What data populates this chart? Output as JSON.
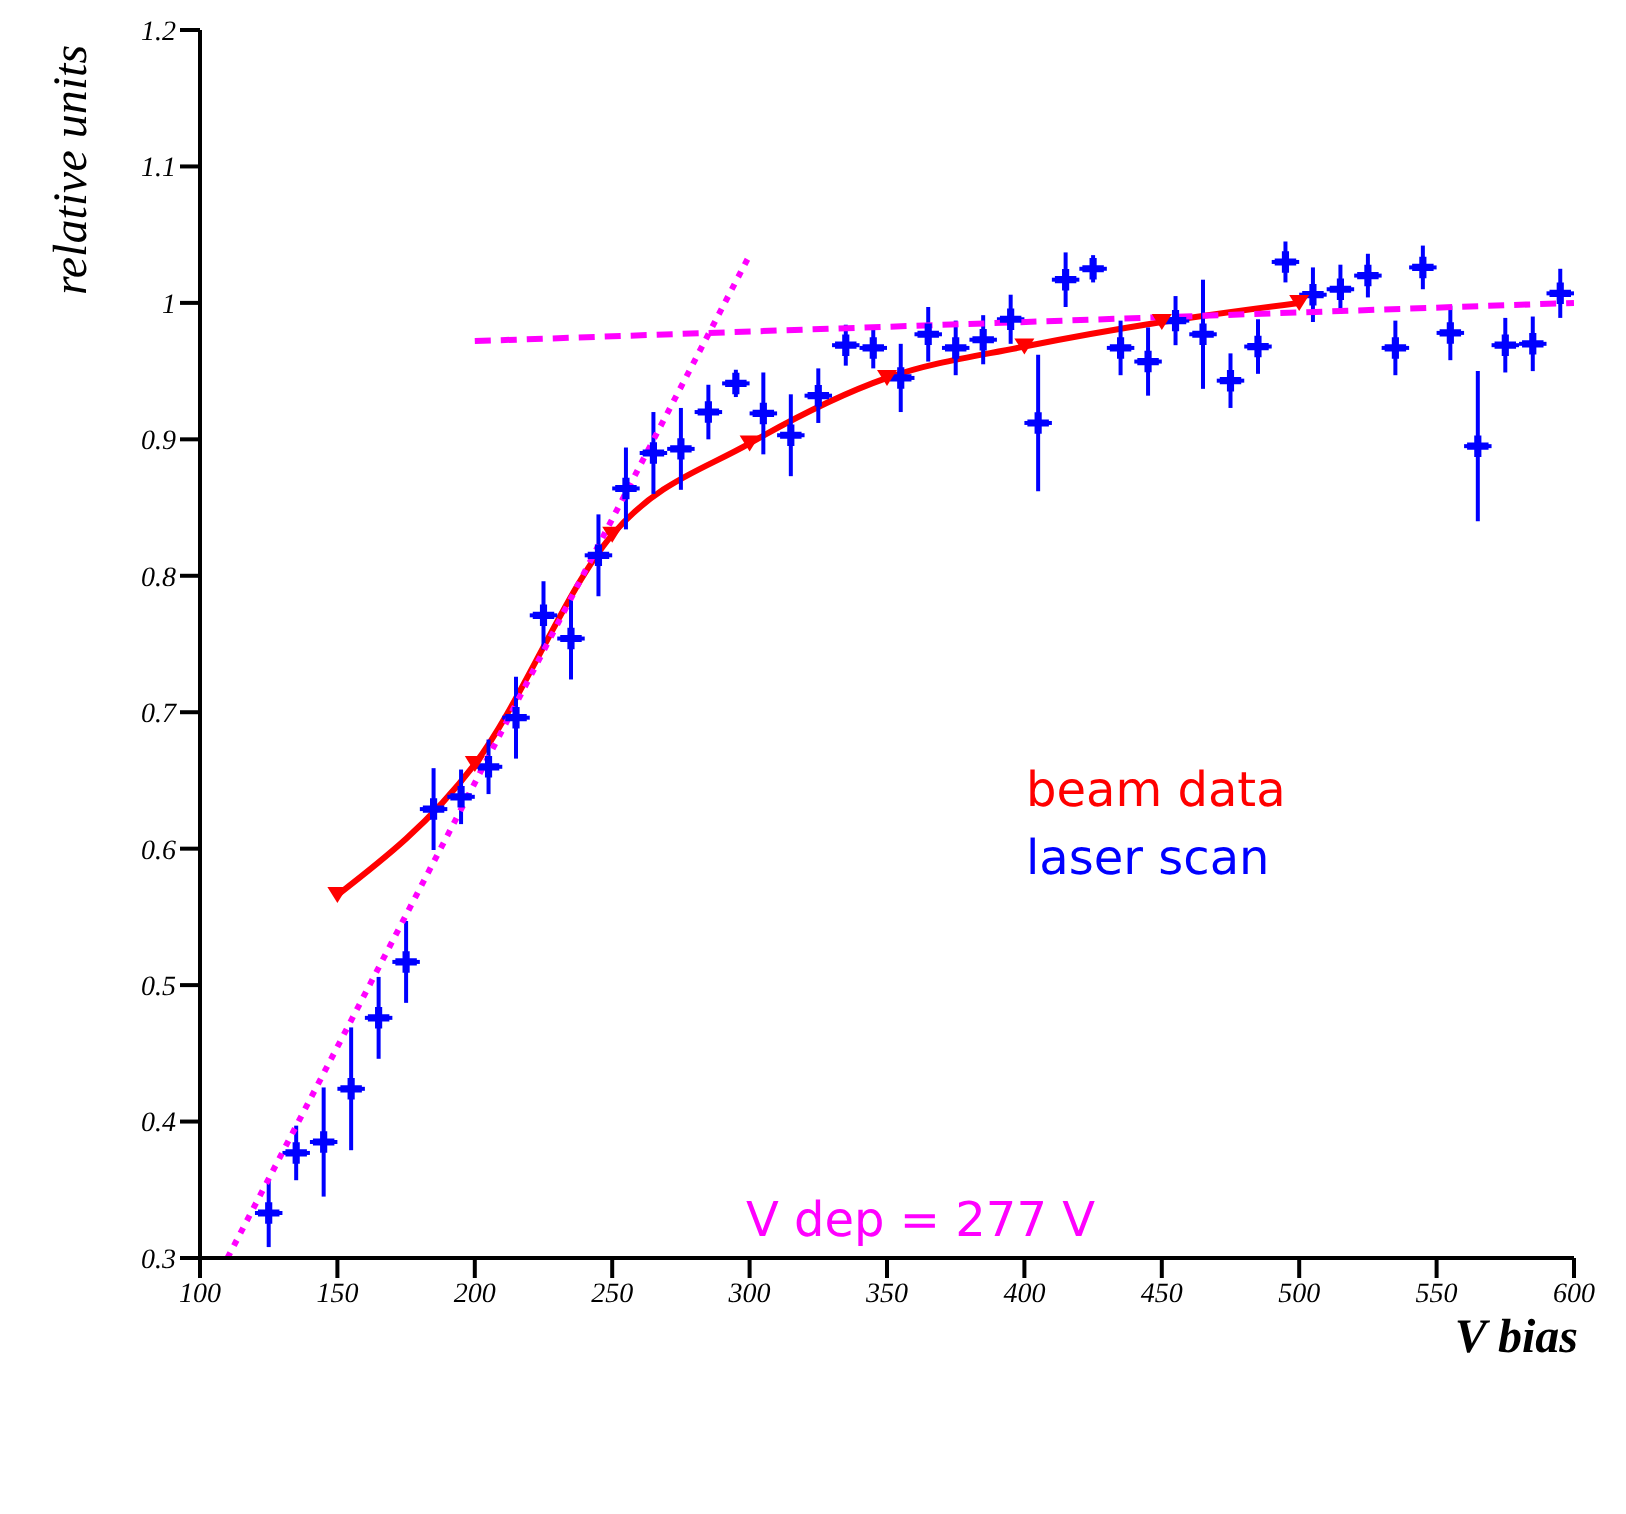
{
  "chart_data": {
    "type": "line",
    "xlabel": "V bias",
    "ylabel": "relative units",
    "xlim": [
      100,
      600
    ],
    "xticks": [
      100,
      150,
      200,
      250,
      300,
      350,
      400,
      450,
      500,
      550,
      600
    ],
    "ylim": [
      0.3,
      1.2
    ],
    "yticks": [
      0.3,
      0.4,
      0.5,
      0.6,
      0.7,
      0.8,
      0.9,
      1,
      1.1,
      1.2
    ],
    "grid": false,
    "legend": "right",
    "annotations": [
      "V dep = 277 V"
    ],
    "series": [
      {
        "name": "beam data",
        "color": "#ff0000",
        "marker": "triangle",
        "line_style": "solid",
        "x": [
          150,
          200,
          250,
          300,
          350,
          400,
          450,
          500
        ],
        "values": [
          0.566,
          0.662,
          0.83,
          0.897,
          0.945,
          0.968,
          0.986,
          1.0
        ]
      },
      {
        "name": "laser scan",
        "color": "#0000ff",
        "marker": "cross",
        "x": [
          125,
          135,
          145,
          155,
          165,
          175,
          185,
          195,
          205,
          215,
          225,
          235,
          245,
          255,
          265,
          275,
          285,
          295,
          305,
          315,
          325,
          335,
          345,
          355,
          365,
          375,
          385,
          395,
          405,
          415,
          425,
          435,
          445,
          455,
          465,
          475,
          485,
          495,
          505,
          515,
          525,
          535,
          545,
          555,
          565,
          575,
          585,
          595
        ],
        "values": [
          0.333,
          0.377,
          0.385,
          0.424,
          0.476,
          0.517,
          0.629,
          0.638,
          0.66,
          0.696,
          0.771,
          0.754,
          0.815,
          0.864,
          0.89,
          0.893,
          0.92,
          0.941,
          0.919,
          0.903,
          0.932,
          0.969,
          0.967,
          0.945,
          0.977,
          0.967,
          0.973,
          0.988,
          0.912,
          1.017,
          1.025,
          0.967,
          0.957,
          0.987,
          0.977,
          0.943,
          0.968,
          1.03,
          1.006,
          1.01,
          1.02,
          0.967,
          1.026,
          0.978,
          0.895,
          0.969,
          0.97,
          1.007
        ],
        "errors": [
          0.025,
          0.02,
          0.04,
          0.045,
          0.03,
          0.03,
          0.03,
          0.02,
          0.02,
          0.03,
          0.025,
          0.03,
          0.03,
          0.03,
          0.03,
          0.03,
          0.02,
          0.01,
          0.03,
          0.03,
          0.02,
          0.015,
          0.015,
          0.025,
          0.02,
          0.02,
          0.018,
          0.018,
          0.05,
          0.02,
          0.01,
          0.02,
          0.025,
          0.018,
          0.04,
          0.02,
          0.02,
          0.015,
          0.02,
          0.018,
          0.016,
          0.02,
          0.016,
          0.02,
          0.055,
          0.02,
          0.02,
          0.018
        ],
        "xerrors": [
          5,
          5,
          5,
          5,
          5,
          5,
          5,
          5,
          5,
          5,
          5,
          5,
          5,
          5,
          5,
          5,
          5,
          5,
          5,
          5,
          5,
          5,
          5,
          5,
          5,
          5,
          5,
          5,
          5,
          5,
          5,
          5,
          5,
          5,
          5,
          5,
          5,
          5,
          5,
          5,
          5,
          5,
          5,
          5,
          5,
          5,
          5,
          5
        ],
        "type": "scatter"
      },
      {
        "color": "#ff00ff",
        "marker": "none",
        "line_style": "dotted",
        "x": [
          110,
          300
        ],
        "values": [
          0.3,
          1.035
        ]
      },
      {
        "color": "#ff00ff",
        "marker": "none",
        "line_style": "dashed",
        "x": [
          200,
          600
        ],
        "values": [
          0.972,
          1.0
        ]
      }
    ]
  }
}
